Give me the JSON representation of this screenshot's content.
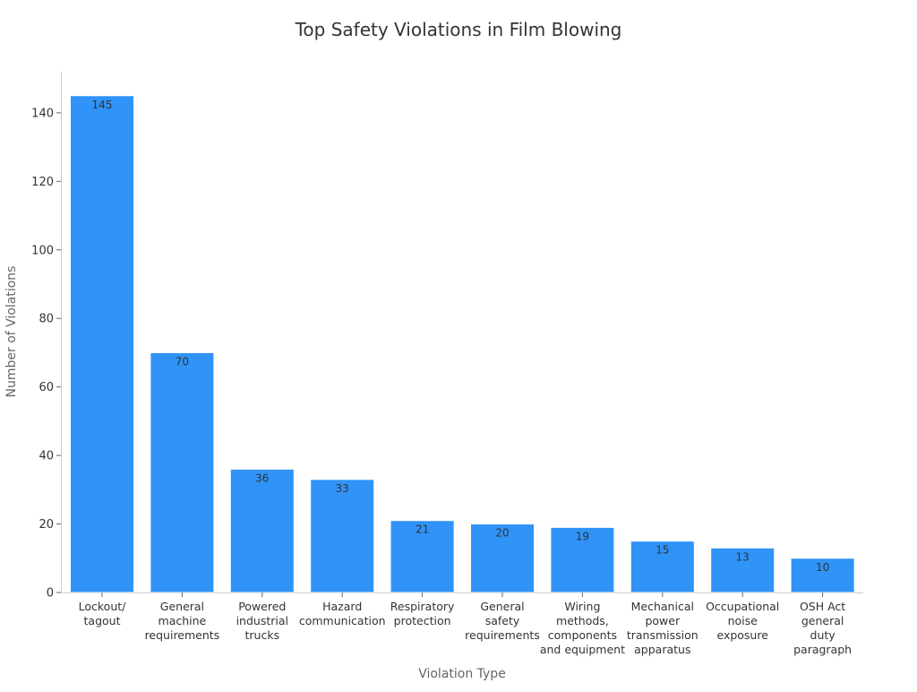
{
  "chart_data": {
    "type": "bar",
    "title": "Top Safety Violations in Film Blowing",
    "xlabel": "Violation Type",
    "ylabel": "Number of Violations",
    "ylim": [
      0,
      152
    ],
    "yticks": [
      0,
      20,
      40,
      60,
      80,
      100,
      120,
      140
    ],
    "grid": false,
    "bar_color": "#2f93f7",
    "categories": [
      [
        "Lockout/",
        "tagout"
      ],
      [
        "General",
        "machine",
        "requirements"
      ],
      [
        "Powered",
        "industrial",
        "trucks"
      ],
      [
        "Hazard",
        "communication"
      ],
      [
        "Respiratory",
        "protection"
      ],
      [
        "General",
        "safety",
        "requirements"
      ],
      [
        "Wiring",
        "methods,",
        "components",
        "and equipment"
      ],
      [
        "Mechanical",
        "power",
        "transmission",
        "apparatus"
      ],
      [
        "Occupational",
        "noise",
        "exposure"
      ],
      [
        "OSH Act",
        "general",
        "duty",
        "paragraph"
      ]
    ],
    "values": [
      145,
      70,
      36,
      33,
      21,
      20,
      19,
      15,
      13,
      10
    ],
    "data_labels": [
      "145",
      "70",
      "36",
      "33",
      "21",
      "20",
      "19",
      "15",
      "13",
      "10"
    ]
  }
}
